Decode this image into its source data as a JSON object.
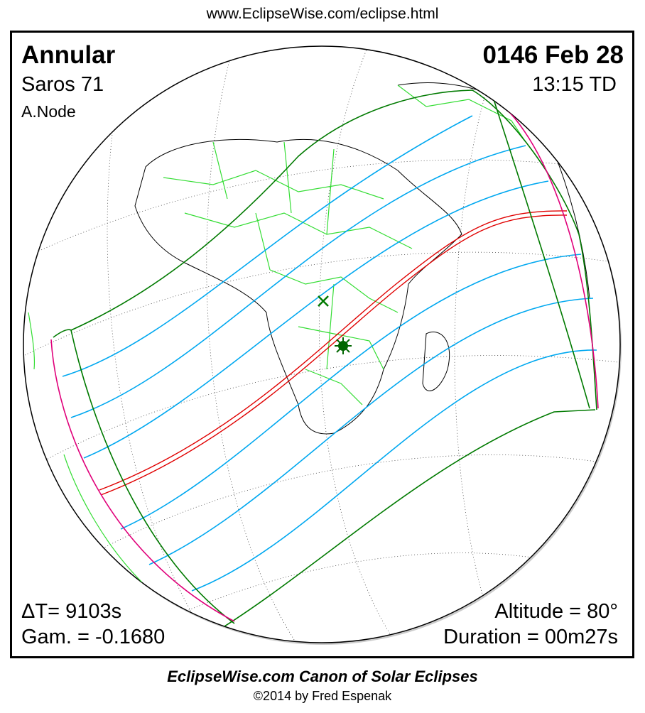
{
  "header": {
    "url": "www.EclipseWise.com/eclipse.html"
  },
  "top_left": {
    "type": "Annular",
    "saros": "Saros  71",
    "node": "A.Node"
  },
  "top_right": {
    "date": "0146 Feb 28",
    "time": "13:15 TD"
  },
  "bottom_left": {
    "delta_t": "ΔT=   9103s",
    "gamma": "Gam. = -0.1680"
  },
  "bottom_right": {
    "altitude": "Altitude = 80°",
    "duration": "Duration = 00m27s"
  },
  "footer": {
    "title": "EclipseWise.com Canon of Solar Eclipses",
    "copyright": "©2014 by Fred Espenak"
  },
  "colors": {
    "central_line": "#e00000",
    "penumbral_lines": "#00a8f0",
    "penumbral_limits": "#007a00",
    "rise_set_curve": "#e0007a",
    "borders": "#33dd33"
  },
  "markers": {
    "greatest_eclipse": "star-icon",
    "greatest_duration": "x-icon"
  }
}
